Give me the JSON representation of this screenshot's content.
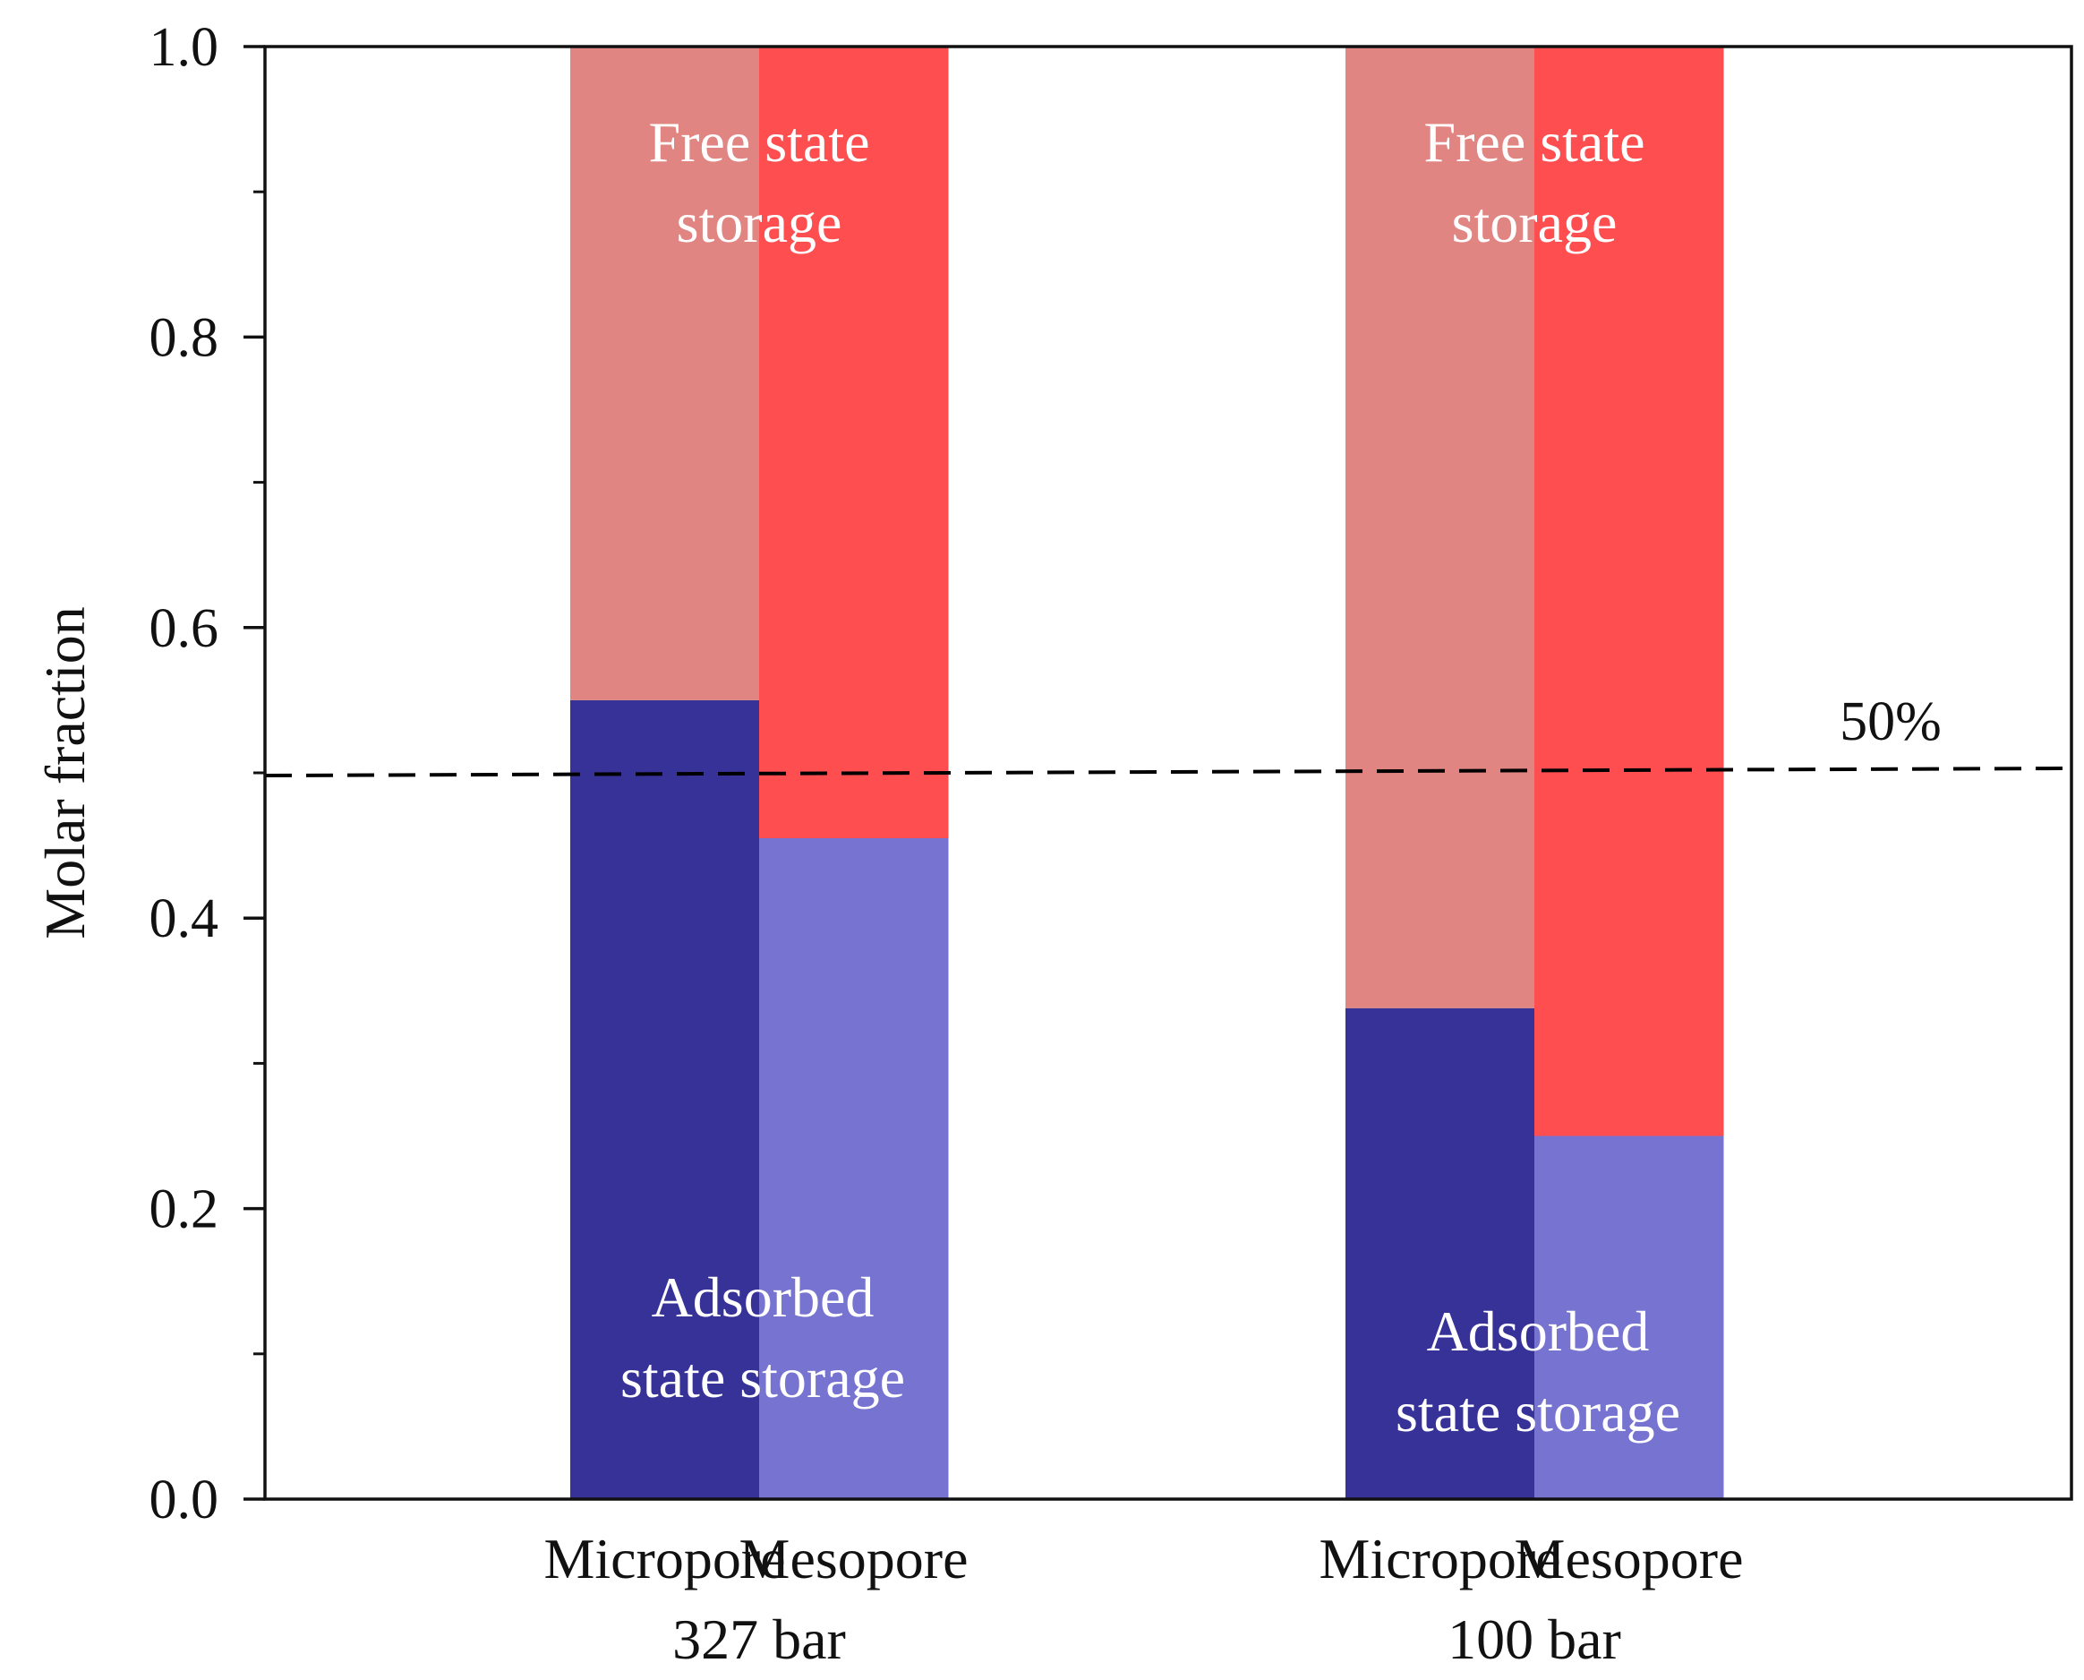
{
  "chart_data": {
    "type": "bar",
    "stacked": true,
    "ylabel": "Molar fraction",
    "ylim": [
      0,
      1.0
    ],
    "yticks": [
      "0.0",
      "0.2",
      "0.4",
      "0.6",
      "0.8",
      "1.0"
    ],
    "groups": [
      {
        "label": "327 bar",
        "bars": [
          {
            "label": "Micropore",
            "adsorbed": 0.55,
            "free": 0.45
          },
          {
            "label": "Mesopore",
            "adsorbed": 0.455,
            "free": 0.545
          }
        ],
        "annotations": {
          "free": "Free state storage",
          "adsorbed": "Adsorbed state storage"
        }
      },
      {
        "label": "100 bar",
        "bars": [
          {
            "label": "Micropore",
            "adsorbed": 0.338,
            "free": 0.662
          },
          {
            "label": "Mesopore",
            "adsorbed": 0.25,
            "free": 0.75
          }
        ],
        "annotations": {
          "free": "Free state storage",
          "adsorbed": "Adsorbed state storage"
        }
      }
    ],
    "reference_line": {
      "value": 0.5,
      "label": "50%",
      "style": "dashed"
    },
    "colors": {
      "micropore_adsorbed": "#363298",
      "mesopore_adsorbed": "#7674d0",
      "micropore_free": "#e08582",
      "mesopore_free": "#fe4e4f",
      "axis": "#111111"
    }
  },
  "labels": {
    "free_line1": "Free state",
    "free_line2": "storage",
    "adsorbed_line1": "Adsorbed",
    "adsorbed_line2": "state storage"
  }
}
